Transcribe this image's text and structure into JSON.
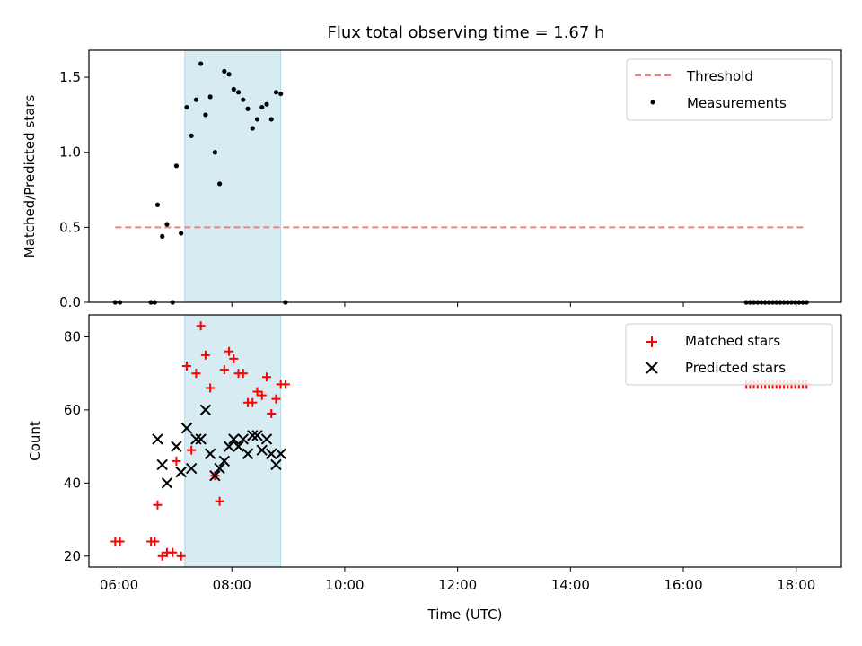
{
  "chart_data": [
    {
      "type": "scatter",
      "title": "Flux total observing time = 1.67 h",
      "xlabel": "",
      "ylabel": "Matched/Predicted stars",
      "xlim": [
        "05:28",
        "18:48"
      ],
      "ylim": [
        0,
        1.68
      ],
      "yticks": [
        "0.0",
        "0.5",
        "1.0",
        "1.5"
      ],
      "xticks": [
        "06:00",
        "08:00",
        "10:00",
        "12:00",
        "14:00",
        "16:00",
        "18:00"
      ],
      "show_xtick_labels": false,
      "highlight_span": [
        "07:10",
        "08:52"
      ],
      "threshold": {
        "name": "Threshold",
        "value": 0.5,
        "x_range": [
          "05:56",
          "18:08"
        ],
        "color": "#f08080",
        "style": "dashed"
      },
      "series": [
        {
          "name": "Measurements",
          "color": "#000000",
          "marker": "dot",
          "points": [
            [
              "05:56",
              0
            ],
            [
              "06:01",
              0
            ],
            [
              "06:34",
              0
            ],
            [
              "06:38",
              0
            ],
            [
              "06:41",
              0.65
            ],
            [
              "06:46",
              0.44
            ],
            [
              "06:51",
              0.52
            ],
            [
              "06:57",
              0
            ],
            [
              "07:01",
              0.91
            ],
            [
              "07:06",
              0.46
            ],
            [
              "07:12",
              1.3
            ],
            [
              "07:17",
              1.11
            ],
            [
              "07:22",
              1.35
            ],
            [
              "07:27",
              1.59
            ],
            [
              "07:32",
              1.25
            ],
            [
              "07:37",
              1.37
            ],
            [
              "07:42",
              1.0
            ],
            [
              "07:47",
              0.79
            ],
            [
              "07:52",
              1.54
            ],
            [
              "07:57",
              1.52
            ],
            [
              "08:02",
              1.42
            ],
            [
              "08:07",
              1.4
            ],
            [
              "08:12",
              1.35
            ],
            [
              "08:17",
              1.29
            ],
            [
              "08:22",
              1.16
            ],
            [
              "08:27",
              1.22
            ],
            [
              "08:32",
              1.3
            ],
            [
              "08:37",
              1.32
            ],
            [
              "08:42",
              1.22
            ],
            [
              "08:47",
              1.4
            ],
            [
              "08:52",
              1.39
            ],
            [
              "08:57",
              0
            ],
            [
              "17:07",
              0
            ],
            [
              "17:11",
              0
            ],
            [
              "17:15",
              0
            ],
            [
              "17:19",
              0
            ],
            [
              "17:23",
              0
            ],
            [
              "17:27",
              0
            ],
            [
              "17:31",
              0
            ],
            [
              "17:35",
              0
            ],
            [
              "17:39",
              0
            ],
            [
              "17:43",
              0
            ],
            [
              "17:47",
              0
            ],
            [
              "17:51",
              0
            ],
            [
              "17:55",
              0
            ],
            [
              "17:59",
              0
            ],
            [
              "18:03",
              0
            ],
            [
              "18:07",
              0
            ],
            [
              "18:11",
              0
            ]
          ]
        }
      ],
      "legend_position": "top-right"
    },
    {
      "type": "scatter",
      "title": "",
      "xlabel": "Time (UTC)",
      "ylabel": "Count",
      "xlim": [
        "05:28",
        "18:48"
      ],
      "ylim": [
        17,
        86
      ],
      "yticks": [
        "20",
        "40",
        "60",
        "80"
      ],
      "xticks": [
        "06:00",
        "08:00",
        "10:00",
        "12:00",
        "14:00",
        "16:00",
        "18:00"
      ],
      "highlight_span": [
        "07:10",
        "08:52"
      ],
      "series": [
        {
          "name": "Matched stars",
          "color": "#ff0000",
          "marker": "plus",
          "points": [
            [
              "05:56",
              24
            ],
            [
              "06:01",
              24
            ],
            [
              "06:34",
              24
            ],
            [
              "06:38",
              24
            ],
            [
              "06:41",
              34
            ],
            [
              "06:46",
              20
            ],
            [
              "06:51",
              21
            ],
            [
              "06:57",
              21
            ],
            [
              "07:01",
              46
            ],
            [
              "07:06",
              20
            ],
            [
              "07:12",
              72
            ],
            [
              "07:17",
              49
            ],
            [
              "07:22",
              70
            ],
            [
              "07:27",
              83
            ],
            [
              "07:32",
              75
            ],
            [
              "07:37",
              66
            ],
            [
              "07:42",
              42
            ],
            [
              "07:47",
              35
            ],
            [
              "07:52",
              71
            ],
            [
              "07:57",
              76
            ],
            [
              "08:02",
              74
            ],
            [
              "08:07",
              70
            ],
            [
              "08:12",
              70
            ],
            [
              "08:17",
              62
            ],
            [
              "08:22",
              62
            ],
            [
              "08:27",
              65
            ],
            [
              "08:32",
              64
            ],
            [
              "08:37",
              69
            ],
            [
              "08:42",
              59
            ],
            [
              "08:47",
              63
            ],
            [
              "08:52",
              67
            ],
            [
              "08:57",
              67
            ],
            [
              "17:07",
              67
            ],
            [
              "17:11",
              67
            ],
            [
              "17:15",
              67
            ],
            [
              "17:19",
              67
            ],
            [
              "17:23",
              67
            ],
            [
              "17:27",
              67
            ],
            [
              "17:31",
              67
            ],
            [
              "17:35",
              67
            ],
            [
              "17:39",
              67
            ],
            [
              "17:43",
              67
            ],
            [
              "17:47",
              67
            ],
            [
              "17:51",
              67
            ],
            [
              "17:55",
              67
            ],
            [
              "17:59",
              67
            ],
            [
              "18:03",
              67
            ],
            [
              "18:07",
              67
            ],
            [
              "18:11",
              67
            ]
          ]
        },
        {
          "name": "Predicted stars",
          "color": "#000000",
          "marker": "x",
          "points": [
            [
              "06:41",
              52
            ],
            [
              "06:46",
              45
            ],
            [
              "06:51",
              40
            ],
            [
              "07:01",
              50
            ],
            [
              "07:06",
              43
            ],
            [
              "07:12",
              55
            ],
            [
              "07:17",
              44
            ],
            [
              "07:22",
              52
            ],
            [
              "07:27",
              52
            ],
            [
              "07:32",
              60
            ],
            [
              "07:37",
              48
            ],
            [
              "07:42",
              42
            ],
            [
              "07:47",
              44
            ],
            [
              "07:52",
              46
            ],
            [
              "07:57",
              50
            ],
            [
              "08:02",
              52
            ],
            [
              "08:07",
              50
            ],
            [
              "08:12",
              52
            ],
            [
              "08:17",
              48
            ],
            [
              "08:22",
              53
            ],
            [
              "08:27",
              53
            ],
            [
              "08:32",
              49
            ],
            [
              "08:37",
              52
            ],
            [
              "08:42",
              48
            ],
            [
              "08:47",
              45
            ],
            [
              "08:52",
              48
            ]
          ]
        }
      ],
      "legend_position": "top-right"
    }
  ]
}
